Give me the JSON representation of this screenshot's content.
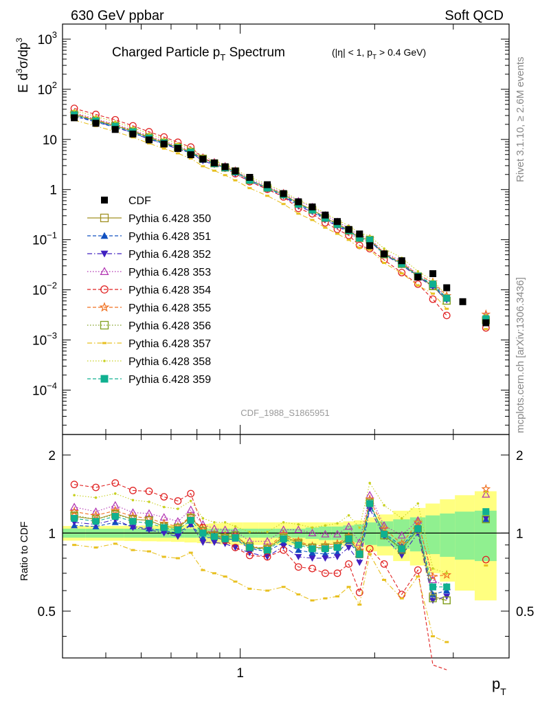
{
  "header": {
    "left": "630 GeV ppbar",
    "right": "Soft QCD"
  },
  "side": {
    "rivet": "Rivet 3.1.10, ≥ 2.6M events",
    "mcplots": "mcplots.cern.ch [arXiv:1306.3436]"
  },
  "chart_data": {
    "type": "line",
    "title": "Charged Particle pT Spectrum",
    "subtitle": "(|η| < 1, pT > 0.4 GeV)",
    "analysis": "CDF_1988_S1865951",
    "xlabel": "pT",
    "ylabel": "E d3σ/dp3",
    "ratio_ylabel": "Ratio to CDF",
    "xscale": "log",
    "yscale": "log",
    "xlim": [
      0.4,
      4.0
    ],
    "ylim": [
      1.3e-05,
      2000
    ],
    "ratio_ylim": [
      0.33,
      2.4
    ],
    "legend_position": "middle-left",
    "y_tick_labels": [
      "10^-4",
      "10^-3",
      "10^-2",
      "10^-1",
      "1",
      "10",
      "10^2",
      "10^3"
    ],
    "x_tick_labels": [
      "1"
    ],
    "ratio_tick_labels": [
      "0.5",
      "1",
      "2"
    ],
    "x": [
      0.425,
      0.475,
      0.525,
      0.575,
      0.625,
      0.675,
      0.725,
      0.775,
      0.825,
      0.875,
      0.925,
      0.975,
      1.05,
      1.15,
      1.25,
      1.35,
      1.45,
      1.55,
      1.65,
      1.75,
      1.85,
      1.95,
      2.1,
      2.3,
      2.5,
      2.7,
      2.9,
      3.15,
      3.55
    ],
    "data": {
      "name": "CDF",
      "color": "#000000",
      "values": [
        27,
        21,
        15.8,
        12.8,
        9.8,
        8.1,
        6.6,
        4.95,
        4.05,
        3.4,
        2.85,
        2.35,
        1.75,
        1.25,
        0.83,
        0.57,
        0.45,
        0.31,
        0.23,
        0.16,
        0.13,
        0.076,
        0.052,
        0.038,
        0.018,
        0.021,
        0.011,
        0.0058,
        0.0022
      ],
      "band_outer": [
        0.065,
        0.065,
        0.066,
        0.068,
        0.07,
        0.072,
        0.075,
        0.08,
        0.085,
        0.09,
        0.095,
        0.1,
        0.1,
        0.1,
        0.1,
        0.1,
        0.1,
        0.1,
        0.1,
        0.11,
        0.12,
        0.15,
        0.18,
        0.22,
        0.25,
        0.3,
        0.35,
        0.4,
        0.45
      ],
      "band_inner": [
        0.04,
        0.04,
        0.04,
        0.04,
        0.04,
        0.04,
        0.04,
        0.04,
        0.04,
        0.04,
        0.04,
        0.04,
        0.04,
        0.04,
        0.04,
        0.04,
        0.05,
        0.06,
        0.06,
        0.07,
        0.08,
        0.1,
        0.11,
        0.13,
        0.15,
        0.17,
        0.19,
        0.21,
        0.22
      ]
    },
    "series": [
      {
        "name": "Pythia 6.428 350",
        "color": "#a09020",
        "marker": "square-open",
        "dash": "solid",
        "ratio": [
          1.16,
          1.13,
          1.19,
          1.13,
          1.12,
          1.06,
          1.05,
          1.15,
          1.02,
          0.98,
          0.96,
          0.98,
          0.88,
          0.87,
          0.97,
          0.92,
          0.88,
          0.88,
          0.89,
          0.96,
          0.84,
          1.31,
          0.98,
          0.87,
          1.03,
          0.57,
          0.55,
          null,
          1.13
        ]
      },
      {
        "name": "Pythia 6.428 351",
        "color": "#1050c0",
        "marker": "triangle-up",
        "dash": "dashed",
        "ratio": [
          1.07,
          1.06,
          1.1,
          1.06,
          1.04,
          1.02,
          1.0,
          1.08,
          0.96,
          0.96,
          0.94,
          0.95,
          0.87,
          0.85,
          0.92,
          0.86,
          0.84,
          0.83,
          0.84,
          0.93,
          0.82,
          1.27,
          1.0,
          0.89,
          1.05,
          0.58,
          0.6,
          null,
          1.13
        ]
      },
      {
        "name": "Pythia 6.428 352",
        "color": "#4020c0",
        "marker": "triangle-down",
        "dash": "dashdot",
        "ratio": [
          1.1,
          1.08,
          1.13,
          1.05,
          1.03,
          1.0,
          0.97,
          1.08,
          0.92,
          0.92,
          0.91,
          0.88,
          0.84,
          0.81,
          0.89,
          0.81,
          0.8,
          0.8,
          0.81,
          0.88,
          0.77,
          1.24,
          0.97,
          0.82,
          1.0,
          0.55,
          0.57,
          null,
          1.14
        ]
      },
      {
        "name": "Pythia 6.428 353",
        "color": "#b030b0",
        "marker": "triangle-open",
        "dash": "dotted",
        "ratio": [
          1.26,
          1.21,
          1.28,
          1.2,
          1.19,
          1.15,
          1.11,
          1.23,
          1.08,
          1.04,
          1.03,
          1.02,
          0.93,
          0.93,
          1.03,
          1.03,
          1.0,
          0.99,
          0.99,
          1.06,
          0.92,
          1.4,
          1.07,
          0.98,
          1.12,
          0.66,
          0.62,
          null,
          1.41
        ]
      },
      {
        "name": "Pythia 6.428 354",
        "color": "#e02020",
        "marker": "circle-open",
        "dash": "dashed",
        "ratio": [
          1.54,
          1.5,
          1.56,
          1.46,
          1.45,
          1.38,
          1.33,
          1.42,
          1.05,
          0.98,
          0.94,
          0.88,
          0.82,
          0.81,
          0.86,
          0.74,
          0.73,
          0.7,
          0.7,
          0.76,
          0.59,
          0.87,
          0.76,
          0.58,
          0.72,
          0.31,
          0.28,
          null,
          0.79
        ]
      },
      {
        "name": "Pythia 6.428 355",
        "color": "#f07020",
        "marker": "star",
        "dash": "dashed",
        "ratio": [
          1.21,
          1.17,
          1.22,
          1.16,
          1.14,
          1.09,
          1.06,
          1.16,
          1.03,
          0.99,
          0.98,
          0.98,
          0.88,
          0.88,
          0.99,
          0.93,
          0.89,
          0.9,
          0.91,
          0.97,
          0.86,
          1.35,
          1.04,
          0.91,
          1.1,
          0.68,
          0.69,
          null,
          1.48
        ]
      },
      {
        "name": "Pythia 6.428 356",
        "color": "#80a020",
        "marker": "square-open",
        "dash": "dotted",
        "ratio": [
          1.17,
          1.13,
          1.18,
          1.13,
          1.12,
          1.06,
          1.05,
          1.14,
          1.02,
          0.98,
          0.96,
          0.98,
          0.89,
          0.87,
          0.96,
          0.91,
          0.88,
          0.88,
          0.89,
          0.95,
          0.83,
          1.31,
          0.98,
          0.86,
          1.03,
          0.56,
          0.55,
          null,
          1.13
        ]
      },
      {
        "name": "Pythia 6.428 357",
        "color": "#e8c020",
        "marker": "dash",
        "dash": "dashdot",
        "ratio": [
          0.9,
          0.88,
          0.91,
          0.86,
          0.85,
          0.81,
          0.8,
          0.84,
          0.72,
          0.7,
          0.68,
          0.65,
          0.61,
          0.6,
          0.62,
          0.58,
          0.55,
          0.56,
          0.57,
          0.62,
          0.53,
          0.83,
          0.66,
          0.56,
          0.68,
          0.4,
          0.38,
          null,
          0.75
        ]
      },
      {
        "name": "Pythia 6.428 358",
        "color": "#c8d020",
        "marker": "dot",
        "dash": "dotted",
        "ratio": [
          1.4,
          1.37,
          1.42,
          1.34,
          1.32,
          1.26,
          1.24,
          1.33,
          1.14,
          1.1,
          1.1,
          1.06,
          1.01,
          1.01,
          1.1,
          1.08,
          1.05,
          1.07,
          1.09,
          1.17,
          1.05,
          1.56,
          1.28,
          1.14,
          1.3,
          0.73,
          0.7,
          null,
          1.44
        ]
      },
      {
        "name": "Pythia 6.428 359",
        "color": "#10b090",
        "marker": "square",
        "dash": "dashed",
        "ratio": [
          1.14,
          1.11,
          1.16,
          1.11,
          1.09,
          1.05,
          1.03,
          1.12,
          1.0,
          0.97,
          0.95,
          0.96,
          0.88,
          0.86,
          0.95,
          0.9,
          0.87,
          0.87,
          0.88,
          0.95,
          0.83,
          1.3,
          0.99,
          0.87,
          1.04,
          0.62,
          0.62,
          null,
          1.21
        ]
      }
    ]
  }
}
